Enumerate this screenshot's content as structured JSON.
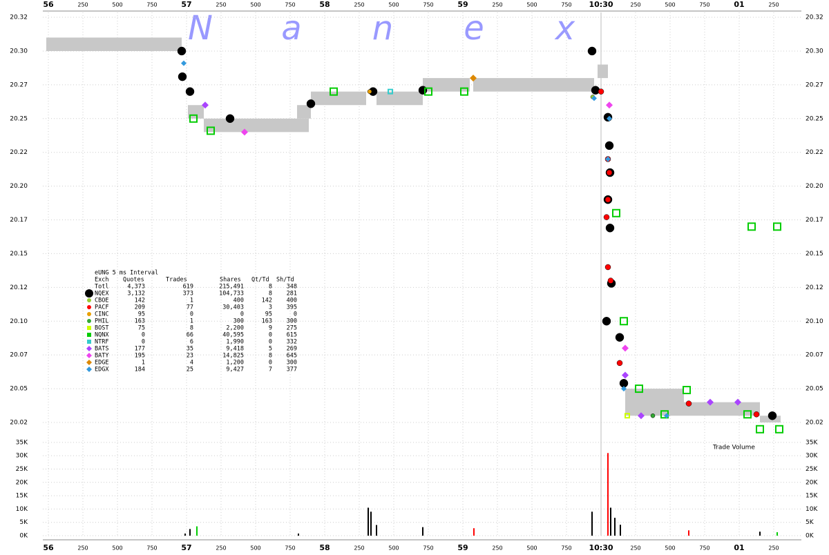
{
  "watermark": [
    "N",
    "a",
    "n",
    "e",
    "x"
  ],
  "chart_data": [
    {
      "type": "scatter",
      "xlim": [
        -40,
        5450
      ],
      "xticks": [
        0,
        250,
        500,
        750,
        {
          "value": 1000,
          "label": "57"
        },
        {
          "value": 1250,
          "label": "250"
        },
        {
          "value": 1500,
          "label": "500"
        },
        {
          "value": 1750,
          "label": "750"
        },
        {
          "value": 2000,
          "label": "58"
        },
        {
          "value": 2250,
          "label": "250"
        },
        {
          "value": 2500,
          "label": "500"
        },
        {
          "value": 2750,
          "label": "750"
        },
        {
          "value": 3000,
          "label": "59"
        },
        {
          "value": 3250,
          "label": "250"
        },
        {
          "value": 3500,
          "label": "500"
        },
        {
          "value": 3750,
          "label": "750"
        },
        {
          "value": 4000,
          "label": "10:30"
        },
        {
          "value": 4250,
          "label": "250"
        },
        {
          "value": 4500,
          "label": "500"
        },
        {
          "value": 4750,
          "label": "750"
        },
        {
          "value": 5000,
          "label": "01"
        },
        {
          "value": 5250,
          "label": "250"
        }
      ],
      "x_first_label": "56",
      "ylim": [
        20.0158,
        20.3286
      ],
      "yticks": [
        {
          "value": 20.025,
          "label": "20.02"
        },
        20.05,
        {
          "value": 20.075,
          "label": "20.07"
        },
        {
          "value": 20.1,
          "label": "20.10"
        },
        {
          "value": 20.125,
          "label": "20.12"
        },
        20.15,
        {
          "value": 20.175,
          "label": "20.17"
        },
        {
          "value": 20.2,
          "label": "20.20"
        },
        {
          "value": 20.225,
          "label": "20.22"
        },
        20.25,
        {
          "value": 20.275,
          "label": "20.27"
        },
        {
          "value": 20.3,
          "label": "20.30"
        },
        {
          "value": 20.325,
          "label": "20.32"
        }
      ],
      "grid": true,
      "nbbo_color": "#c8c8c8",
      "nbbo": [
        {
          "x0": -15,
          "x1": 965,
          "bid": 20.3,
          "ask": 20.31
        },
        {
          "x0": 1010,
          "x1": 1125,
          "bid": 20.25,
          "ask": 20.26
        },
        {
          "x0": 1125,
          "x1": 1885,
          "bid": 20.24,
          "ask": 20.25
        },
        {
          "x0": 1800,
          "x1": 1900,
          "bid": 20.25,
          "ask": 20.26
        },
        {
          "x0": 1900,
          "x1": 2300,
          "bid": 20.26,
          "ask": 20.27
        },
        {
          "x0": 2375,
          "x1": 2710,
          "bid": 20.26,
          "ask": 20.27
        },
        {
          "x0": 2710,
          "x1": 3050,
          "bid": 20.27,
          "ask": 20.28
        },
        {
          "x0": 3075,
          "x1": 3950,
          "bid": 20.27,
          "ask": 20.28
        },
        {
          "x0": 3975,
          "x1": 4050,
          "bid": 20.28,
          "ask": 20.29
        },
        {
          "x0": 4175,
          "x1": 4600,
          "bid": 20.03,
          "ask": 20.05
        },
        {
          "x0": 4600,
          "x1": 5150,
          "bid": 20.03,
          "ask": 20.04
        },
        {
          "x0": 5150,
          "x1": 5300,
          "bid": 20.025,
          "ask": 20.03
        }
      ],
      "legend_title": "eUNG 5 ms Interval",
      "legend_columns": [
        "Exch",
        "Quotes",
        "Trades",
        "Shares",
        "Qt/Td",
        "Sh/Td"
      ],
      "total": {
        "name": "Totl",
        "stats": [
          "4,373",
          "619",
          "215,491",
          "8",
          "348"
        ]
      },
      "series": [
        {
          "name": "NQEX",
          "color": "#000000",
          "marker": "circle",
          "size": 6,
          "stats": [
            "3,132",
            "373",
            "104,733",
            "8",
            "281"
          ],
          "x": [
            965,
            970,
            1025,
            1315,
            1900,
            2350,
            2710,
            3935,
            3960,
            4050,
            4060,
            4065,
            4050,
            4065,
            4075,
            4040,
            4135,
            4165,
            5240
          ],
          "values": [
            20.3,
            20.281,
            20.27,
            20.25,
            20.261,
            20.27,
            20.271,
            20.3,
            20.271,
            20.251,
            20.23,
            20.21,
            20.19,
            20.169,
            20.128,
            20.1,
            20.088,
            20.054,
            20.03
          ]
        },
        {
          "name": "CBOE",
          "color": "#99cc33",
          "marker": "circle",
          "size": 3,
          "stats": [
            "142",
            "1",
            "400",
            "142",
            "400"
          ],
          "x": [
            3940
          ],
          "values": [
            20.266
          ]
        },
        {
          "name": "PACF",
          "color": "#ff0000",
          "marker": "circle",
          "size": 4,
          "stats": [
            "209",
            "77",
            "30,403",
            "3",
            "395"
          ],
          "x": [
            4000,
            4050,
            4060,
            4050,
            4040,
            4050,
            4070,
            4135,
            4635,
            5125
          ],
          "values": [
            20.27,
            20.22,
            20.21,
            20.19,
            20.177,
            20.14,
            20.13,
            20.069,
            20.039,
            20.031
          ]
        },
        {
          "name": "CINC",
          "color": "#e9a000",
          "marker": "circle",
          "size": 3,
          "stats": [
            "95",
            "0",
            "0",
            "95",
            "0"
          ],
          "x": [
            2325
          ],
          "values": [
            20.27
          ]
        },
        {
          "name": "PHIL",
          "color": "#33aa33",
          "marker": "circle",
          "size": 3,
          "stats": [
            "163",
            "1",
            "300",
            "163",
            "300"
          ],
          "x": [
            4375
          ],
          "values": [
            20.03
          ]
        },
        {
          "name": "BOST",
          "color": "#ccff00",
          "marker": "square",
          "size": 3,
          "stats": [
            "75",
            "8",
            "2,200",
            "9",
            "275"
          ],
          "x": [
            4190
          ],
          "values": [
            20.03
          ]
        },
        {
          "name": "NQNX",
          "color": "#00cc00",
          "marker": "square",
          "size": 5,
          "stats": [
            "0",
            "66",
            "40,595",
            "0",
            "615"
          ],
          "x": [
            1050,
            1175,
            2065,
            2750,
            3010,
            4110,
            4165,
            4275,
            4620,
            5060,
            5090,
            5275,
            5290,
            5150,
            4460
          ],
          "values": [
            20.25,
            20.241,
            20.27,
            20.27,
            20.27,
            20.18,
            20.1,
            20.05,
            20.049,
            20.031,
            20.17,
            20.17,
            20.02,
            20.02,
            20.031
          ]
        },
        {
          "name": "NTRF",
          "color": "#33cccc",
          "marker": "square",
          "size": 3,
          "stats": [
            "0",
            "6",
            "1,990",
            "0",
            "332"
          ],
          "x": [
            2475
          ],
          "values": [
            20.27
          ]
        },
        {
          "name": "BATS",
          "color": "#aa44ff",
          "marker": "diamond",
          "size": 5,
          "stats": [
            "177",
            "35",
            "9,418",
            "5",
            "269"
          ],
          "x": [
            1135,
            4175,
            4290,
            4790,
            4990
          ],
          "values": [
            20.26,
            20.06,
            20.03,
            20.04,
            20.04
          ]
        },
        {
          "name": "BATY",
          "color": "#ee44ee",
          "marker": "diamond",
          "size": 5,
          "stats": [
            "195",
            "23",
            "14,825",
            "8",
            "645"
          ],
          "x": [
            1420,
            4060,
            4175
          ],
          "values": [
            20.24,
            20.26,
            20.08
          ]
        },
        {
          "name": "EDGE",
          "color": "#dd8800",
          "marker": "diamond",
          "size": 5,
          "stats": [
            "1",
            "4",
            "1,200",
            "0",
            "300"
          ],
          "x": [
            3075
          ],
          "values": [
            20.28
          ]
        },
        {
          "name": "EDGX",
          "color": "#3399dd",
          "marker": "diamond",
          "size": 4,
          "stats": [
            "184",
            "25",
            "9,427",
            "7",
            "377"
          ],
          "x": [
            980,
            3950,
            4060,
            4050,
            4165,
            4475
          ],
          "values": [
            20.291,
            20.265,
            20.25,
            20.22,
            20.05,
            20.03
          ]
        }
      ]
    },
    {
      "type": "bar",
      "label": "Trade Volume",
      "ylim": [
        0,
        36000
      ],
      "yticks": [
        {
          "value": 0,
          "label": "0K"
        },
        {
          "value": 5000,
          "label": "5K"
        },
        {
          "value": 10000,
          "label": "10K"
        },
        {
          "value": 15000,
          "label": "15K"
        },
        {
          "value": 20000,
          "label": "20K"
        },
        {
          "value": 25000,
          "label": "25K"
        },
        {
          "value": 30000,
          "label": "30K"
        },
        {
          "value": 35000,
          "label": "35K"
        }
      ],
      "x": [
        990,
        1025,
        1075,
        1810,
        2315,
        2335,
        2375,
        2710,
        3080,
        3935,
        4050,
        4070,
        4100,
        4140,
        4635,
        5150,
        5275
      ],
      "values": [
        800,
        2500,
        3500,
        800,
        10500,
        9000,
        4000,
        3200,
        2800,
        9000,
        31000,
        10500,
        6700,
        4100,
        2000,
        1500,
        1300
      ],
      "colors": [
        "#000000",
        "#000000",
        "#00cc00",
        "#000000",
        "#000000",
        "#000000",
        "#000000",
        "#000000",
        "#ff0000",
        "#000000",
        "#ff0000",
        "#000000",
        "#000000",
        "#000000",
        "#ff0000",
        "#000000",
        "#00cc00"
      ]
    }
  ]
}
